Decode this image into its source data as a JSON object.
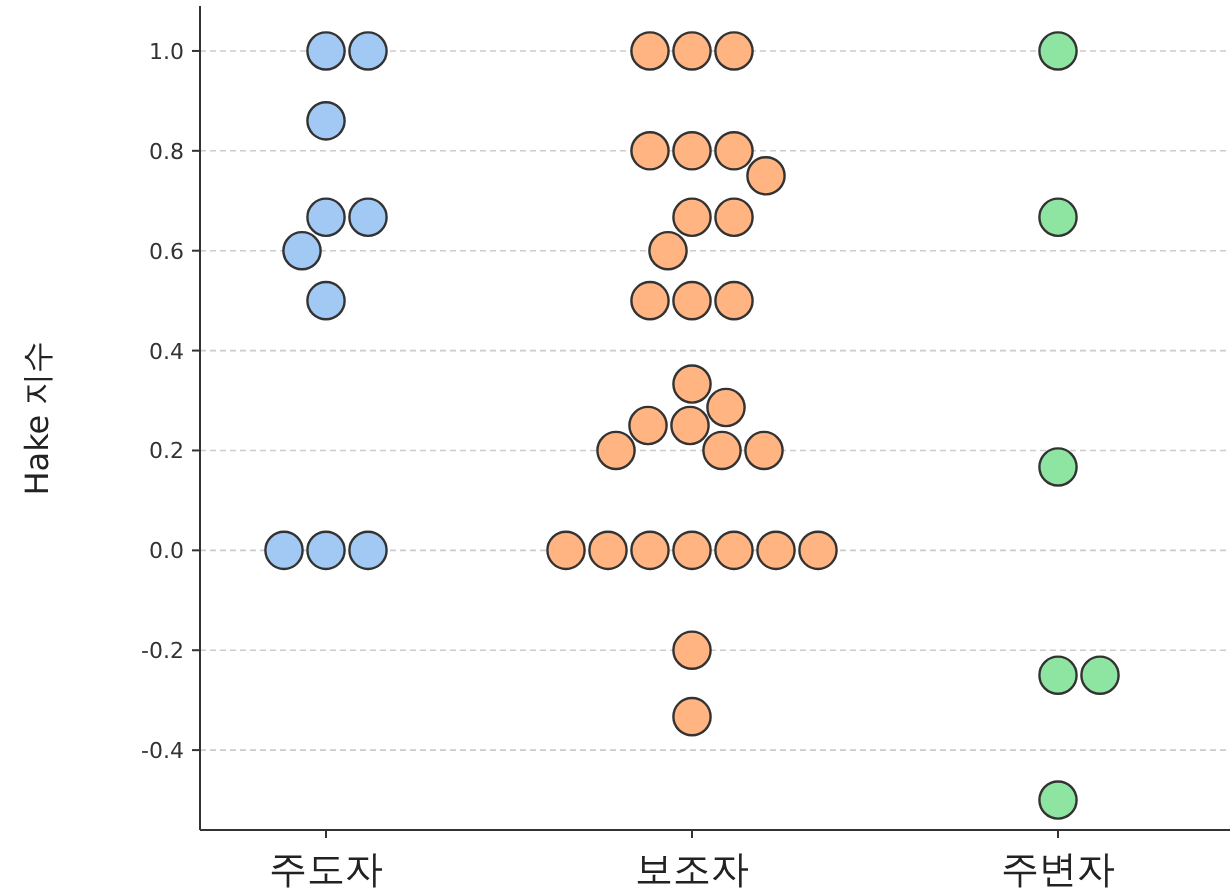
{
  "chart_data": {
    "type": "scatter",
    "ylabel": "Hake 지수",
    "categories": [
      "주도자",
      "보조자",
      "주변자"
    ],
    "series": [
      {
        "color": "#a1c9f4",
        "x": [
          "주도자",
          "주도자",
          "주도자",
          "주도자",
          "주도자",
          "주도자",
          "주도자",
          "주도자",
          "주도자",
          "주도자"
        ],
        "values": [
          1.0,
          1.0,
          0.86,
          0.667,
          0.667,
          0.6,
          0.5,
          0,
          0,
          0
        ]
      },
      {
        "color": "#ffb482",
        "x": [
          "보조자",
          "보조자",
          "보조자",
          "보조자",
          "보조자",
          "보조자",
          "보조자",
          "보조자",
          "보조자",
          "보조자",
          "보조자",
          "보조자",
          "보조자",
          "보조자",
          "보조자",
          "보조자",
          "보조자",
          "보조자",
          "보조자",
          "보조자",
          "보조자",
          "보조자",
          "보조자",
          "보조자",
          "보조자",
          "보조자",
          "보조자",
          "보조자",
          "보조자"
        ],
        "values": [
          1.0,
          1.0,
          1.0,
          0.8,
          0.8,
          0.8,
          0.75,
          0.667,
          0.667,
          0.6,
          0.5,
          0.5,
          0.5,
          0.333,
          0.286,
          0.25,
          0.25,
          0.2,
          0.2,
          0.2,
          0,
          0,
          0,
          0,
          0,
          0,
          0,
          -0.2,
          -0.333
        ]
      },
      {
        "color": "#8de5a1",
        "x": [
          "주변자",
          "주변자",
          "주변자",
          "주변자",
          "주변자",
          "주변자"
        ],
        "values": [
          1.0,
          0.667,
          0.167,
          -0.25,
          -0.25,
          -0.5
        ]
      }
    ],
    "ylim": [
      -0.56,
      1.09
    ],
    "yticks": [
      {
        "value": -0.4,
        "label": "-0.4"
      },
      {
        "value": -0.2,
        "label": "-0.2"
      },
      {
        "value": 0,
        "label": "0.0"
      },
      {
        "value": 0.2,
        "label": "0.2"
      },
      {
        "value": 0.4,
        "label": "0.4"
      },
      {
        "value": 0.6,
        "label": "0.6"
      },
      {
        "value": 0.8,
        "label": "0.8"
      },
      {
        "value": 1.0,
        "label": "1.0"
      }
    ],
    "grid": "y",
    "marker": "circle"
  }
}
